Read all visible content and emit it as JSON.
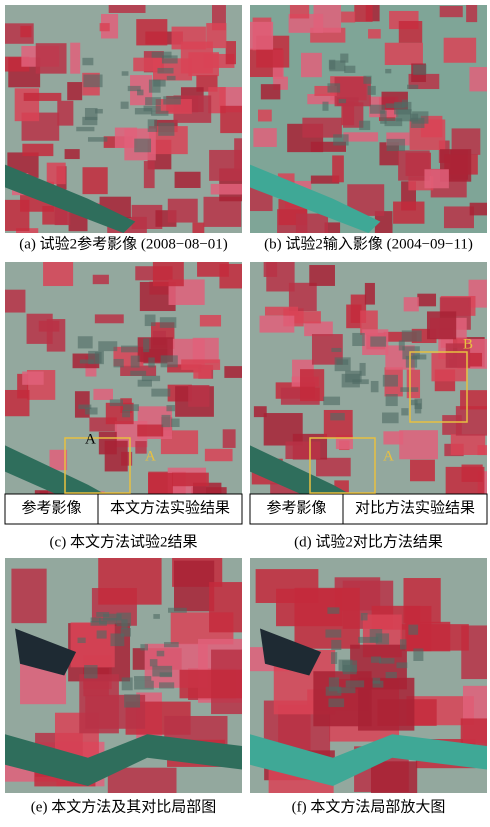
{
  "panels": [
    {
      "caption": "(a) 试验2参考影像 (2008−08−01)"
    },
    {
      "caption": "(b) 试验2输入影像 (2004−09−11)"
    },
    {
      "caption": "(c) 本文方法试验2结果",
      "left_label": "参考影像",
      "right_label": "本文方法实验结果",
      "markers": [
        "A",
        "A"
      ]
    },
    {
      "caption": "(d) 试验2对比方法结果",
      "left_label": "参考影像",
      "right_label": "对比方法实验结果",
      "markers": [
        "B",
        "A"
      ]
    },
    {
      "caption": "(e) 本文方法及其对比局部图"
    },
    {
      "caption": "(f) 本文方法局部放大图"
    }
  ]
}
